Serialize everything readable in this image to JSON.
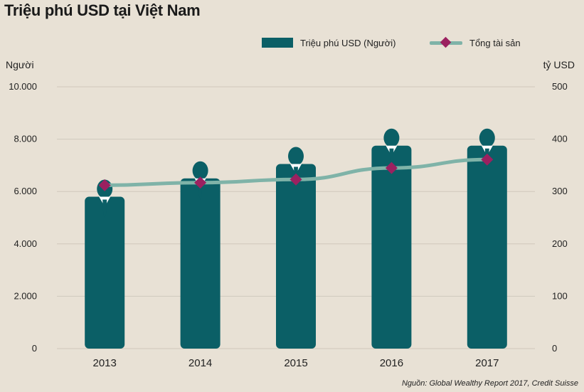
{
  "title": "Triệu phú USD tại Việt Nam",
  "source": "Nguồn: Global Wealthy Report 2017, Credit Suisse",
  "colors": {
    "bar": "#0b5f66",
    "line": "#7fb3a8",
    "marker": "#9b2160",
    "grid": "#cfc8bc",
    "background": "#e8e1d5"
  },
  "legend": {
    "bar_label": "Triệu phú USD (Người)",
    "line_label": "Tổng tài sản"
  },
  "chart_data": {
    "type": "bar",
    "categories": [
      "2013",
      "2014",
      "2015",
      "2016",
      "2017"
    ],
    "series": [
      {
        "name": "Triệu phú USD (Người)",
        "type": "bar",
        "axis": "left",
        "values": [
          5800,
          6500,
          7050,
          7750,
          7750
        ]
      },
      {
        "name": "Tổng tài sản",
        "type": "line",
        "axis": "right",
        "values": [
          312,
          317,
          323,
          345,
          361
        ]
      }
    ],
    "y_left": {
      "label": "Người",
      "ylim": [
        0,
        10000
      ],
      "ticks": [
        "0",
        "2.000",
        "4.000",
        "6.000",
        "8.000",
        "10.000"
      ]
    },
    "y_right": {
      "label": "tỷ USD",
      "ylim": [
        0,
        500
      ],
      "ticks": [
        "0",
        "100",
        "200",
        "300",
        "400",
        "500"
      ]
    },
    "grid": true,
    "legend_position": "top-right"
  }
}
